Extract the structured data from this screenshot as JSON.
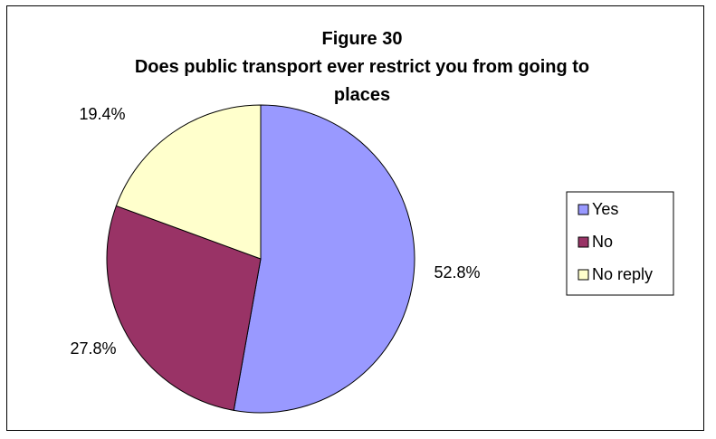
{
  "chart_data": {
    "type": "pie",
    "title": "Figure 30",
    "subtitle_lines": [
      "Does public transport ever restrict you from going to",
      "places"
    ],
    "slices": [
      {
        "label": "Yes",
        "value": 52.8,
        "display": "52.8%",
        "color": "#9999ff"
      },
      {
        "label": "No",
        "value": 27.8,
        "display": "27.8%",
        "color": "#993366"
      },
      {
        "label": "No reply",
        "value": 19.4,
        "display": "19.4%",
        "color": "#ffffcc"
      }
    ],
    "legend_position": "right",
    "start_angle": "12 o'clock",
    "direction": "clockwise"
  }
}
